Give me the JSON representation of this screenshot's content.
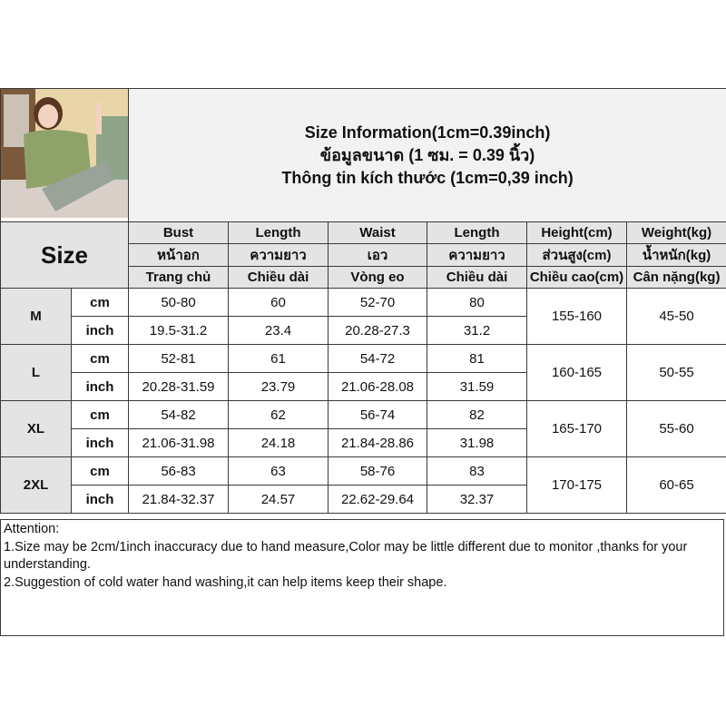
{
  "title_lines": [
    "Size Information(1cm=0.39inch)",
    "ข้อมูลขนาด (1 ซม. = 0.39 นิ้ว)",
    "Thông tin kích thước (1cm=0,39 inch)"
  ],
  "size_label": "Size",
  "headers": [
    [
      "Bust",
      "Length",
      "Waist",
      "Length",
      "Height(cm)",
      "Weight(kg)"
    ],
    [
      "หน้าอก",
      "ความยาว",
      "เอว",
      "ความยาว",
      "ส่วนสูง(cm)",
      "น้ำหนัก(kg)"
    ],
    [
      "Trang chủ",
      "Chiều dài",
      "Vòng eo",
      "Chiều dài",
      "Chiều cao(cm)",
      "Cân nặng(kg)"
    ]
  ],
  "units": {
    "cm": "cm",
    "inch": "inch"
  },
  "rows": [
    {
      "size": "M",
      "cm": [
        "50-80",
        "60",
        "52-70",
        "80"
      ],
      "inch": [
        "19.5-31.2",
        "23.4",
        "20.28-27.3",
        "31.2"
      ],
      "height": "155-160",
      "weight": "45-50"
    },
    {
      "size": "L",
      "cm": [
        "52-81",
        "61",
        "54-72",
        "81"
      ],
      "inch": [
        "20.28-31.59",
        "23.79",
        "21.06-28.08",
        "31.59"
      ],
      "height": "160-165",
      "weight": "50-55"
    },
    {
      "size": "XL",
      "cm": [
        "54-82",
        "62",
        "56-74",
        "82"
      ],
      "inch": [
        "21.06-31.98",
        "24.18",
        "21.84-28.86",
        "31.98"
      ],
      "height": "165-170",
      "weight": "55-60"
    },
    {
      "size": "2XL",
      "cm": [
        "56-83",
        "63",
        "58-76",
        "83"
      ],
      "inch": [
        "21.84-32.37",
        "24.57",
        "22.62-29.64",
        "32.37"
      ],
      "height": "170-175",
      "weight": "60-65"
    }
  ],
  "notes": [
    "Attention:",
    "1.Size may be 2cm/1inch inaccuracy due to hand measure,Color may be little different due to monitor ,thanks for your understanding.",
    "2.Suggestion of cold water hand washing,it can help items keep their shape."
  ]
}
